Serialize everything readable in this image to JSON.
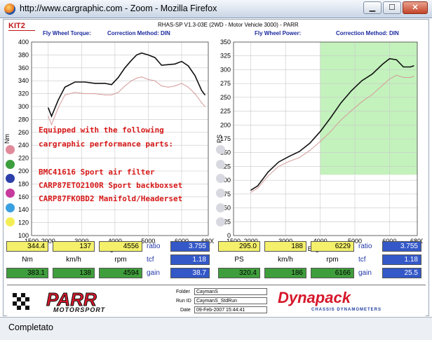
{
  "window": {
    "title": "http://www.cargraphic.com - Zoom - Mozilla Firefox",
    "status": "Completato"
  },
  "header": {
    "kit": "KIT2",
    "software": "RHAS-SP V1.3-03E  (2WD - Motor Vehicle 3000) - PARR"
  },
  "torque_chart": {
    "caption": "Fly Wheel Torque:",
    "correction": "Correction Method: DIN",
    "ylabel": "Nm",
    "xlabel": "Engine RPM",
    "yticks": [
      "400",
      "380",
      "360",
      "340",
      "320",
      "300",
      "280",
      "260",
      "240",
      "220",
      "200",
      "180",
      "160",
      "140",
      "120",
      "100"
    ],
    "xticks": [
      "1500",
      "2000",
      "3000",
      "4000",
      "5000",
      "6000",
      "6800"
    ],
    "annotation": [
      "Equipped with the following",
      "cargraphic performance parts:"
    ],
    "parts": [
      "BMC41616 Sport air filter",
      "CARP87ETO2100R Sport backboxset",
      "CARP87FKOBD2 Manifold/Headerset"
    ]
  },
  "power_chart": {
    "caption": "Fly Wheel Power:",
    "correction": "Correction Method: DIN",
    "ylabel": "PS",
    "xlabel": "Engine RPM",
    "yticks": [
      "350",
      "325",
      "300",
      "275",
      "250",
      "225",
      "200",
      "175",
      "150",
      "125",
      "100",
      "75",
      "50",
      "25",
      "0"
    ],
    "xticks": [
      "1500",
      "2000",
      "3000",
      "4000",
      "5000",
      "6000",
      "6800"
    ]
  },
  "chart_data": [
    {
      "type": "line",
      "title": "Fly Wheel Torque:",
      "xlabel": "Engine RPM",
      "ylabel": "Nm",
      "xlim": [
        1500,
        6800
      ],
      "ylim": [
        100,
        400
      ],
      "grid": true,
      "series": [
        {
          "color": "#111111",
          "x": [
            2000,
            2100,
            2300,
            2500,
            2800,
            3100,
            3400,
            3700,
            3900,
            4100,
            4300,
            4500,
            4650,
            4800,
            5000,
            5200,
            5400,
            5600,
            5800,
            6000,
            6200,
            6400,
            6600,
            6700
          ],
          "y": [
            298,
            285,
            310,
            330,
            338,
            338,
            336,
            336,
            334,
            345,
            360,
            372,
            380,
            383,
            380,
            376,
            364,
            365,
            366,
            370,
            363,
            348,
            325,
            318
          ]
        },
        {
          "color": "#d69a9a",
          "x": [
            2000,
            2100,
            2300,
            2500,
            2800,
            3100,
            3400,
            3700,
            3900,
            4100,
            4300,
            4500,
            4650,
            4800,
            5000,
            5200,
            5400,
            5600,
            5800,
            6000,
            6200,
            6400,
            6600,
            6700
          ],
          "y": [
            285,
            272,
            298,
            318,
            322,
            320,
            320,
            318,
            318,
            322,
            332,
            340,
            344,
            346,
            342,
            340,
            332,
            330,
            332,
            336,
            330,
            320,
            306,
            300
          ]
        }
      ]
    },
    {
      "type": "line",
      "title": "Fly Wheel Power:",
      "xlabel": "Engine RPM",
      "ylabel": "PS",
      "xlim": [
        1500,
        6800
      ],
      "ylim": [
        0,
        350
      ],
      "grid": true,
      "series": [
        {
          "color": "#111111",
          "x": [
            2000,
            2200,
            2500,
            2800,
            3100,
            3400,
            3700,
            4000,
            4300,
            4600,
            4900,
            5200,
            5500,
            5800,
            6000,
            6200,
            6400,
            6600,
            6700
          ],
          "y": [
            82,
            90,
            115,
            133,
            143,
            152,
            167,
            188,
            213,
            240,
            262,
            280,
            292,
            310,
            320,
            318,
            305,
            305,
            307
          ]
        },
        {
          "color": "#d69a9a",
          "x": [
            2000,
            2200,
            2500,
            2800,
            3100,
            3400,
            3700,
            4000,
            4300,
            4600,
            4900,
            5200,
            5500,
            5800,
            6000,
            6200,
            6400,
            6600,
            6700
          ],
          "y": [
            78,
            86,
            108,
            125,
            134,
            141,
            154,
            170,
            188,
            209,
            226,
            242,
            255,
            272,
            283,
            290,
            286,
            286,
            288
          ]
        }
      ]
    }
  ],
  "readouts": {
    "left": {
      "row1": [
        "344.4",
        "137",
        "4556"
      ],
      "row2": [
        "383.1",
        "138",
        "4594"
      ],
      "units": [
        "Nm",
        "km/h",
        "rpm"
      ],
      "ratio_label": "ratio",
      "ratio": "3.755",
      "tcf_label": "tcf",
      "tcf": "1.18",
      "gain_label": "gain",
      "gain": "38.7"
    },
    "right": {
      "row1": [
        "295.0",
        "188",
        "6229"
      ],
      "row2": [
        "320.4",
        "186",
        "6166"
      ],
      "units": [
        "PS",
        "km/h",
        "rpm"
      ],
      "ratio_label": "ratio",
      "ratio": "3.755",
      "tcf_label": "tcf",
      "tcf": "1.18",
      "gain_label": "gain",
      "gain": "25.5"
    }
  },
  "footer": {
    "parr_logo": "PARR",
    "parr_sub": "MOTORSPORT",
    "folder_label": "Folder",
    "folder": "CaymanS",
    "run_label": "Run ID",
    "run": "CaymanS_StdRun",
    "date_label": "Date",
    "date": "09-Feb-2007    15:44:41",
    "dyn_logo": "Dynapack",
    "dyn_sub": "CHASSIS DYNAMOMETERS"
  },
  "colors": {
    "left_dots": [
      "#e08a9a",
      "#3d9e3d",
      "#2d3fa8",
      "#c63a9e",
      "#3aa0e0",
      "#f4ee55"
    ],
    "accent_red": "#c01818",
    "power_zone": "#b8f0b0"
  }
}
